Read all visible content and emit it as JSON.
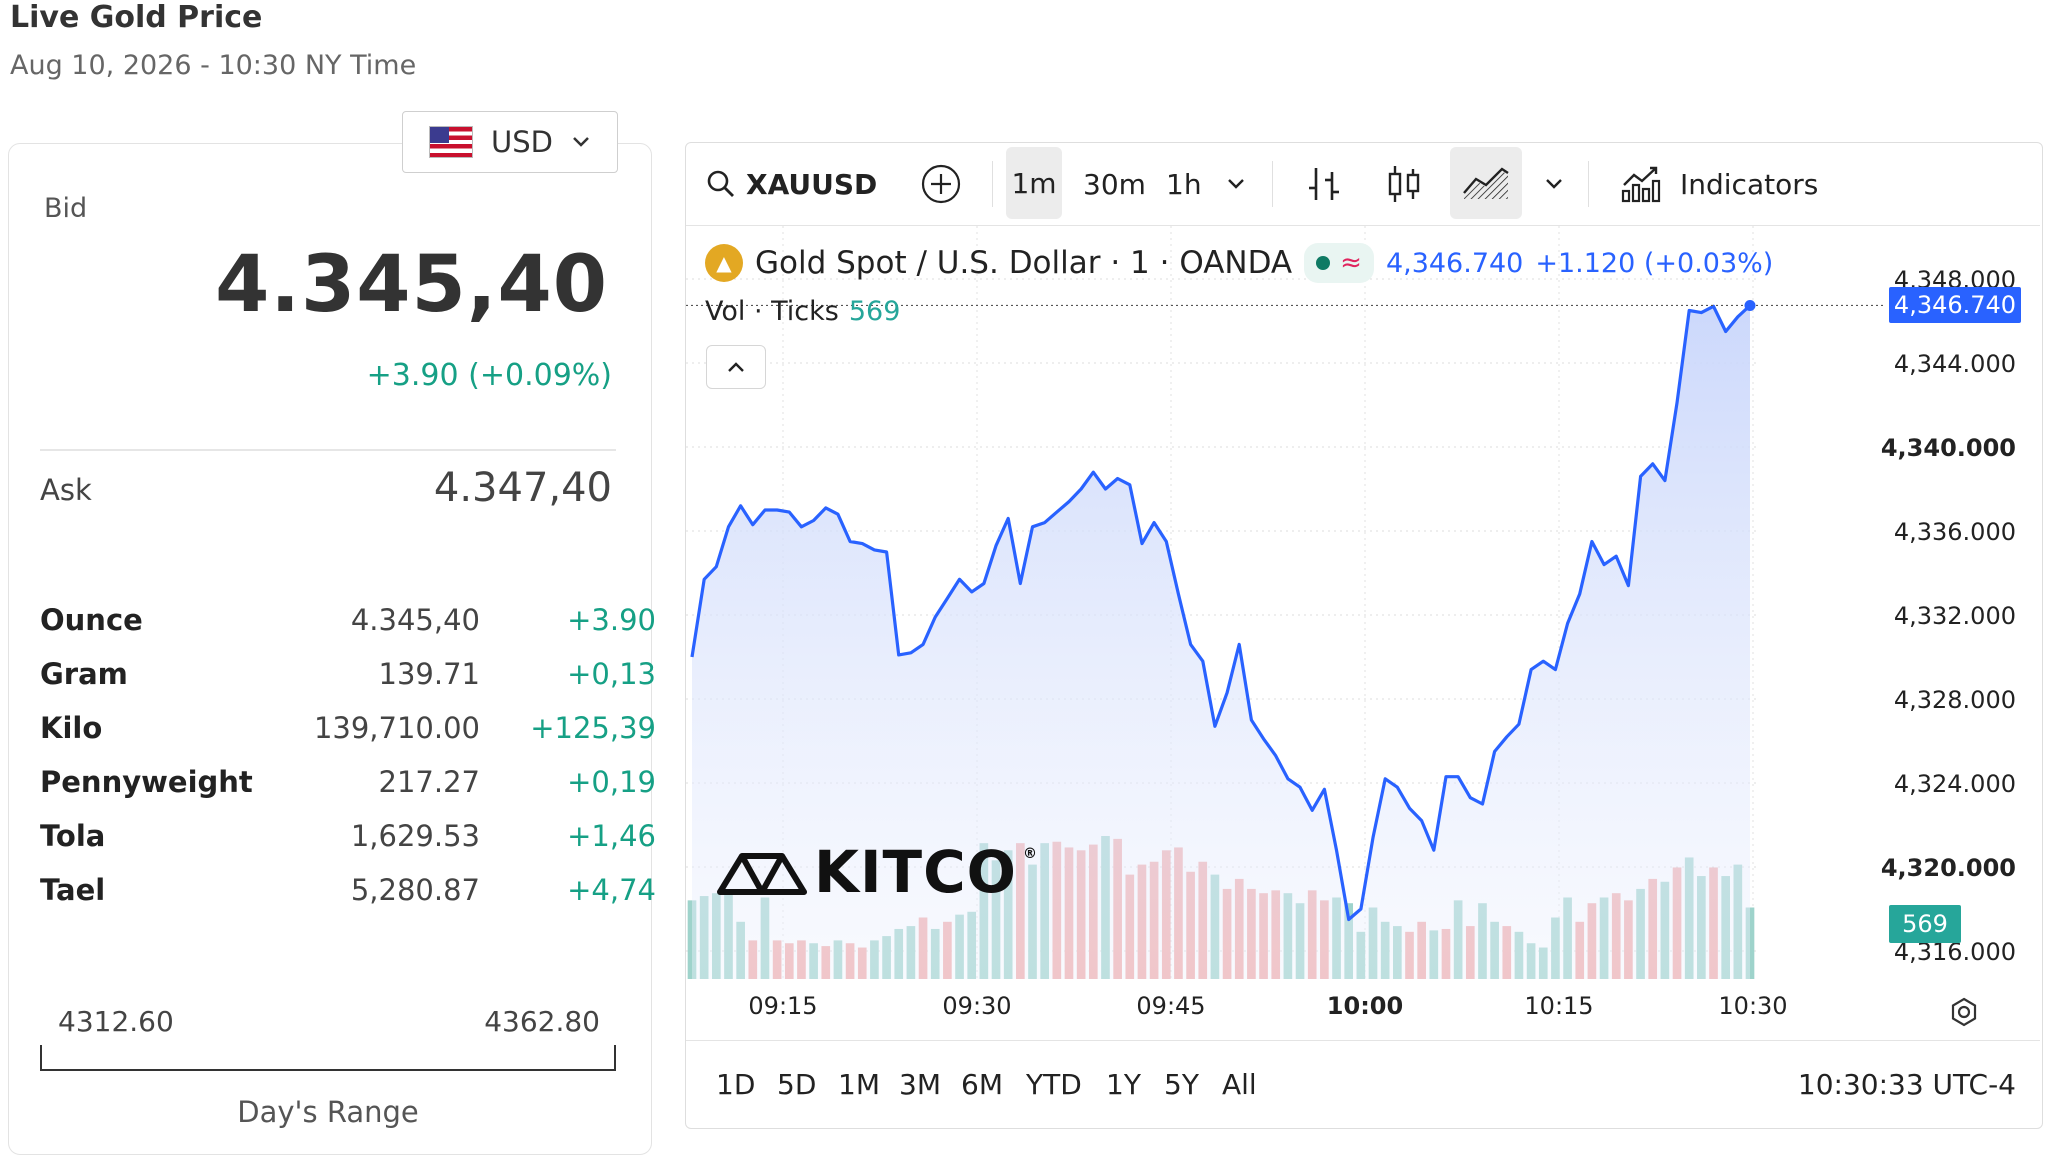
{
  "header": {
    "title": "Live Gold Price",
    "subtitle": "Aug 10, 2026 - 10:30 NY Time"
  },
  "currency": {
    "selected": "USD",
    "flag_icon": "us-flag-icon"
  },
  "quote": {
    "bid_label": "Bid",
    "bid": "4.345,40",
    "bid_change": "+3.90 (+0.09%)",
    "ask_label": "Ask",
    "ask": "4.347,40"
  },
  "units": [
    {
      "name": "Ounce",
      "price": "4.345,40",
      "change": "+3.90"
    },
    {
      "name": "Gram",
      "price": "139.71",
      "change": "+0,13"
    },
    {
      "name": "Kilo",
      "price": "139,710.00",
      "change": "+125,39"
    },
    {
      "name": "Pennyweight",
      "price": "217.27",
      "change": "+0,19"
    },
    {
      "name": "Tola",
      "price": "1,629.53",
      "change": "+1,46"
    },
    {
      "name": "Tael",
      "price": "5,280.87",
      "change": "+4,74"
    }
  ],
  "day_range": {
    "low": "4312.60",
    "high": "4362.80",
    "label": "Day's Range"
  },
  "toolbar": {
    "symbol": "XAUUSD",
    "intervals": [
      "1m",
      "30m",
      "1h"
    ],
    "active_interval": "1m",
    "indicators_label": "Indicators"
  },
  "legend": {
    "name": "Gold Spot / U.S. Dollar · 1 · OANDA",
    "last": "4,346.740",
    "change": "+1.120 (+0.03%)",
    "vol_label": "Vol · Ticks",
    "vol_value": "569"
  },
  "branding": {
    "logo": "KITCO"
  },
  "price_tag": "4,346.740",
  "volume_tag": "569",
  "periods": [
    "1D",
    "5D",
    "1M",
    "3M",
    "6M",
    "YTD",
    "1Y",
    "5Y",
    "All"
  ],
  "clock": "10:30:33 UTC-4",
  "colors": {
    "line": "#2962ff",
    "up": "#26a69a",
    "down": "#ef5350",
    "accent_green": "#16a085"
  },
  "chart_data": {
    "type": "line",
    "x_labels": [
      "09:15",
      "09:30",
      "09:45",
      "10:00",
      "10:15",
      "10:30"
    ],
    "y_ticks": [
      "4,348.000",
      "4,344.000",
      "4,340.000",
      "4,336.000",
      "4,332.000",
      "4,328.000",
      "4,324.000",
      "4,320.000",
      "4,316.000"
    ],
    "ylim": [
      4315.5,
      4348.5
    ],
    "price": [
      4330.0,
      4333.7,
      4334.3,
      4336.2,
      4337.2,
      4336.3,
      4337.0,
      4337.0,
      4336.9,
      4336.2,
      4336.5,
      4337.1,
      4336.8,
      4335.5,
      4335.4,
      4335.1,
      4335.0,
      4330.1,
      4330.2,
      4330.6,
      4331.9,
      4332.8,
      4333.7,
      4333.1,
      4333.5,
      4335.3,
      4336.6,
      4333.5,
      4336.2,
      4336.4,
      4336.9,
      4337.4,
      4338.0,
      4338.8,
      4338.0,
      4338.5,
      4338.2,
      4335.4,
      4336.4,
      4335.5,
      4333.0,
      4330.6,
      4329.8,
      4326.7,
      4328.3,
      4330.6,
      4327.0,
      4326.1,
      4325.3,
      4324.2,
      4323.8,
      4322.7,
      4323.7,
      4320.8,
      4317.5,
      4318.0,
      4321.4,
      4324.2,
      4323.8,
      4322.8,
      4322.2,
      4320.8,
      4324.3,
      4324.3,
      4323.3,
      4323.0,
      4325.5,
      4326.2,
      4326.8,
      4329.4,
      4329.8,
      4329.4,
      4331.6,
      4333.0,
      4335.5,
      4334.4,
      4334.8,
      4333.4,
      4338.6,
      4339.2,
      4338.4,
      4342.1,
      4346.5,
      4346.4,
      4346.7,
      4345.5,
      4346.2,
      4346.74
    ],
    "volume": [
      55,
      58,
      60,
      62,
      40,
      27,
      57,
      27,
      25,
      27,
      25,
      23,
      27,
      25,
      22,
      27,
      30,
      35,
      37,
      43,
      35,
      40,
      45,
      47,
      95,
      83,
      90,
      95,
      80,
      95,
      96,
      92,
      90,
      94,
      100,
      98,
      73,
      80,
      82,
      90,
      92,
      75,
      82,
      73,
      63,
      70,
      63,
      60,
      62,
      60,
      53,
      62,
      55,
      57,
      53,
      33,
      50,
      40,
      37,
      33,
      40,
      34,
      35,
      55,
      37,
      53,
      40,
      37,
      33,
      25,
      22,
      43,
      57,
      40,
      53,
      57,
      60,
      55,
      63,
      70,
      68,
      78,
      85,
      72,
      78,
      72,
      80,
      50
    ],
    "volume_direction": [
      "up",
      "up",
      "up",
      "up",
      "up",
      "down",
      "up",
      "down",
      "down",
      "down",
      "up",
      "down",
      "up",
      "down",
      "down",
      "up",
      "up",
      "up",
      "up",
      "down",
      "up",
      "down",
      "up",
      "up",
      "up",
      "up",
      "up",
      "down",
      "up",
      "up",
      "down",
      "down",
      "down",
      "down",
      "up",
      "down",
      "down",
      "down",
      "down",
      "down",
      "down",
      "down",
      "down",
      "up",
      "down",
      "down",
      "down",
      "down",
      "down",
      "up",
      "up",
      "down",
      "down",
      "up",
      "up",
      "up",
      "up",
      "up",
      "up",
      "down",
      "down",
      "up",
      "down",
      "up",
      "down",
      "up",
      "up",
      "down",
      "up",
      "up",
      "up",
      "up",
      "up",
      "down",
      "down",
      "up",
      "down",
      "down",
      "up",
      "down",
      "up",
      "down",
      "up",
      "up",
      "down",
      "up",
      "up",
      "up"
    ]
  }
}
